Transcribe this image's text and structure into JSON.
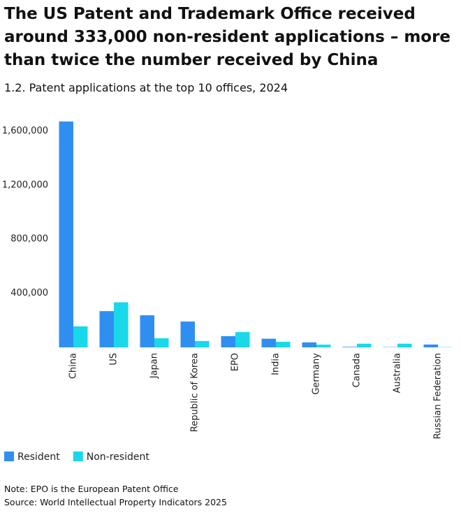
{
  "chart_data": {
    "type": "bar",
    "title": "The US Patent and Trademark Office received around 333,000 non-resident applications – more than twice the number received by China",
    "subtitle": "1.2. Patent applications at the top 10 offices, 2024",
    "categories": [
      "China",
      "US",
      "Japan",
      "Republic of Korea",
      "EPO",
      "India",
      "Germany",
      "Canada",
      "Australia",
      "Russian Federation"
    ],
    "series": [
      {
        "name": "Resident",
        "color": "#2f8ff0",
        "values": [
          1670000,
          268000,
          237000,
          191000,
          83000,
          64000,
          37000,
          4000,
          2000,
          21000
        ]
      },
      {
        "name": "Non-resident",
        "color": "#19d8ea",
        "values": [
          155000,
          333000,
          67000,
          47000,
          113000,
          41000,
          20000,
          27000,
          27000,
          2000
        ]
      }
    ],
    "ylim": [
      0,
      1700000
    ],
    "yticks": [
      {
        "value": 400000,
        "label": "400,000"
      },
      {
        "value": 800000,
        "label": "800,000"
      },
      {
        "value": 1200000,
        "label": "1,200,000"
      },
      {
        "value": 1600000,
        "label": "1,600,000"
      }
    ],
    "grid": false,
    "legend": "bottom-left",
    "note": "Note: EPO is the European Patent Office",
    "source": "Source: World Intellectual Property Indicators 2025"
  }
}
